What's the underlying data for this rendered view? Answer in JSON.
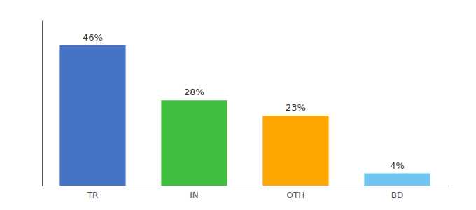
{
  "chart_data": {
    "type": "bar",
    "categories": [
      "TR",
      "IN",
      "OTH",
      "BD"
    ],
    "values": [
      46,
      28,
      23,
      4
    ],
    "value_labels": [
      "46%",
      "28%",
      "23%",
      "4%"
    ],
    "colors": [
      "#4472C4",
      "#3DBF3D",
      "#FFA500",
      "#6EC6F0"
    ],
    "ylim": [
      0,
      54
    ],
    "tick_labels": "x",
    "grid": false,
    "data_labels": true
  }
}
